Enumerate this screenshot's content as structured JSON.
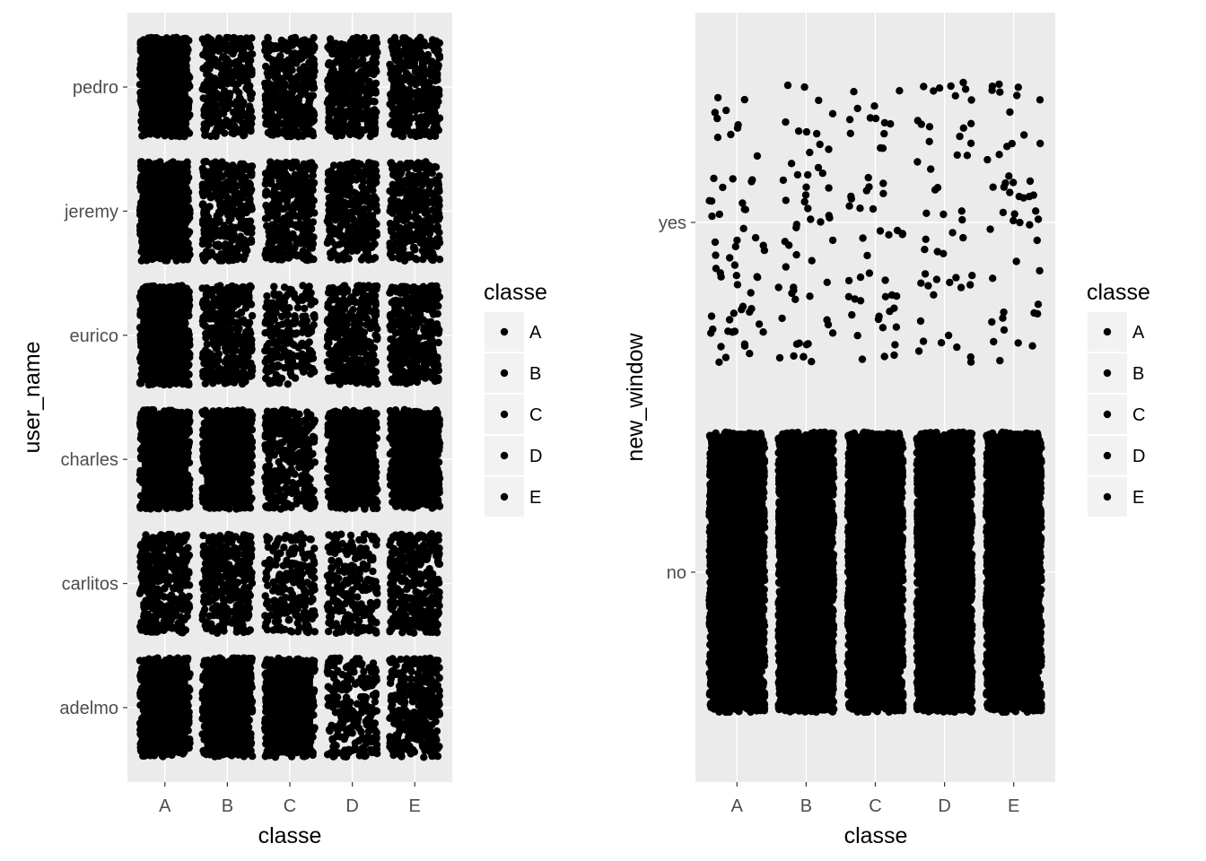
{
  "chart_data": [
    {
      "type": "scatter",
      "jitter": true,
      "x_var": "classe",
      "y_var": "user_name",
      "xlabel": "classe",
      "ylabel": "user_name",
      "categories_x": [
        "A",
        "B",
        "C",
        "D",
        "E"
      ],
      "categories_y": [
        "adelmo",
        "carlitos",
        "charles",
        "eurico",
        "jeremy",
        "pedro"
      ],
      "point_color": "#000000",
      "panel_background": "#ebebeb",
      "grid": true,
      "legend": {
        "title": "classe",
        "entries": [
          "A",
          "B",
          "C",
          "D",
          "E"
        ],
        "position": "right"
      },
      "groups": [
        {
          "x": "A",
          "y": "pedro",
          "density": "very high"
        },
        {
          "x": "B",
          "y": "pedro",
          "density": "high"
        },
        {
          "x": "C",
          "y": "pedro",
          "density": "high"
        },
        {
          "x": "D",
          "y": "pedro",
          "density": "high"
        },
        {
          "x": "E",
          "y": "pedro",
          "density": "high"
        },
        {
          "x": "A",
          "y": "jeremy",
          "density": "very high"
        },
        {
          "x": "B",
          "y": "jeremy",
          "density": "high"
        },
        {
          "x": "C",
          "y": "jeremy",
          "density": "high"
        },
        {
          "x": "D",
          "y": "jeremy",
          "density": "high"
        },
        {
          "x": "E",
          "y": "jeremy",
          "density": "high"
        },
        {
          "x": "A",
          "y": "eurico",
          "density": "very high"
        },
        {
          "x": "B",
          "y": "eurico",
          "density": "high"
        },
        {
          "x": "C",
          "y": "eurico",
          "density": "medium"
        },
        {
          "x": "D",
          "y": "eurico",
          "density": "high"
        },
        {
          "x": "E",
          "y": "eurico",
          "density": "high"
        },
        {
          "x": "A",
          "y": "charles",
          "density": "very high"
        },
        {
          "x": "B",
          "y": "charles",
          "density": "very high"
        },
        {
          "x": "C",
          "y": "charles",
          "density": "high"
        },
        {
          "x": "D",
          "y": "charles",
          "density": "very high"
        },
        {
          "x": "E",
          "y": "charles",
          "density": "very high"
        },
        {
          "x": "A",
          "y": "carlitos",
          "density": "high"
        },
        {
          "x": "B",
          "y": "carlitos",
          "density": "high"
        },
        {
          "x": "C",
          "y": "carlitos",
          "density": "medium"
        },
        {
          "x": "D",
          "y": "carlitos",
          "density": "medium"
        },
        {
          "x": "E",
          "y": "carlitos",
          "density": "high"
        },
        {
          "x": "A",
          "y": "adelmo",
          "density": "very high"
        },
        {
          "x": "B",
          "y": "adelmo",
          "density": "very high"
        },
        {
          "x": "C",
          "y": "adelmo",
          "density": "very high"
        },
        {
          "x": "D",
          "y": "adelmo",
          "density": "medium"
        },
        {
          "x": "E",
          "y": "adelmo",
          "density": "high"
        }
      ]
    },
    {
      "type": "scatter",
      "jitter": true,
      "x_var": "classe",
      "y_var": "new_window",
      "xlabel": "classe",
      "ylabel": "new_window",
      "categories_x": [
        "A",
        "B",
        "C",
        "D",
        "E"
      ],
      "categories_y": [
        "no",
        "yes"
      ],
      "point_color": "#000000",
      "panel_background": "#ebebeb",
      "grid": true,
      "legend": {
        "title": "classe",
        "entries": [
          "A",
          "B",
          "C",
          "D",
          "E"
        ],
        "position": "right"
      },
      "groups": [
        {
          "x": "A",
          "y": "no",
          "density": "solid"
        },
        {
          "x": "B",
          "y": "no",
          "density": "solid"
        },
        {
          "x": "C",
          "y": "no",
          "density": "solid"
        },
        {
          "x": "D",
          "y": "no",
          "density": "solid"
        },
        {
          "x": "E",
          "y": "no",
          "density": "solid"
        },
        {
          "x": "A",
          "y": "yes",
          "count": 60
        },
        {
          "x": "B",
          "y": "yes",
          "count": 55
        },
        {
          "x": "C",
          "y": "yes",
          "count": 52
        },
        {
          "x": "D",
          "y": "yes",
          "count": 50
        },
        {
          "x": "E",
          "y": "yes",
          "count": 48
        }
      ]
    }
  ]
}
